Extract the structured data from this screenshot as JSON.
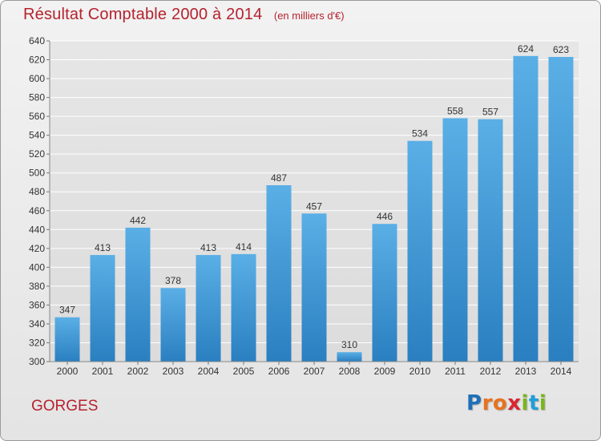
{
  "header": {
    "title": "Résultat Comptable 2000 à 2014",
    "unit": "(en milliers d'€)"
  },
  "footer": {
    "commune": "GORGES",
    "brand": "Proxiti",
    "brand_letters": [
      {
        "ch": "P",
        "color": "#1f6fb8"
      },
      {
        "ch": "r",
        "color": "#e8731f"
      },
      {
        "ch": "o",
        "color": "#e8731f"
      },
      {
        "ch": "x",
        "color": "#d9262f"
      },
      {
        "ch": "i",
        "color": "#7ab51d"
      },
      {
        "ch": "t",
        "color": "#1f9fd8"
      },
      {
        "ch": "i",
        "color": "#7ab51d"
      }
    ]
  },
  "colors": {
    "title": "#b5222e",
    "bar_top": "#5aafe6",
    "bar_bottom": "#2a7fc0",
    "grid": "#ffffff",
    "axis_text": "#333333"
  },
  "chart_data": {
    "type": "bar",
    "categories": [
      "2000",
      "2001",
      "2002",
      "2003",
      "2004",
      "2005",
      "2006",
      "2007",
      "2008",
      "2009",
      "2010",
      "2011",
      "2012",
      "2013",
      "2014"
    ],
    "values": [
      347,
      413,
      442,
      378,
      413,
      414,
      487,
      457,
      310,
      446,
      534,
      558,
      557,
      624,
      623
    ],
    "data_labels": [
      "347",
      "413",
      "442",
      "378",
      "413",
      "414",
      "487",
      "457",
      "310",
      "446",
      "534",
      "558",
      "557",
      "624",
      "623"
    ],
    "ylim": [
      300,
      640
    ],
    "yticks": [
      300,
      320,
      340,
      360,
      380,
      400,
      420,
      440,
      460,
      480,
      500,
      520,
      540,
      560,
      580,
      600,
      620,
      640
    ],
    "grid": true,
    "legend": "none"
  }
}
